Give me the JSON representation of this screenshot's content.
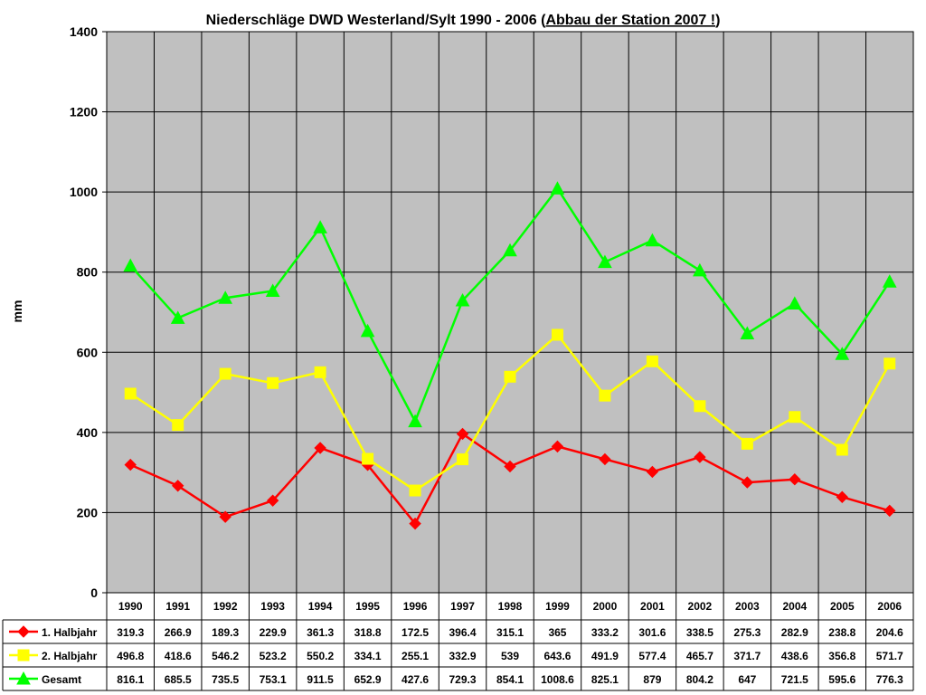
{
  "chart_data": {
    "type": "line",
    "title": "Niederschläge DWD Westerland/Sylt 1990 - 2006 ",
    "title_paren_open": "(",
    "title_underlined": "Abbau der Station 2007 !",
    "title_paren_close": ")",
    "ylabel": "mm",
    "xlabel": "",
    "ylim": [
      0,
      1400
    ],
    "yticks": [
      "0",
      "200",
      "400",
      "600",
      "800",
      "1000",
      "1200",
      "1400"
    ],
    "grid": true,
    "legend": "data-table",
    "plot_background": "#c0c0c0",
    "categories": [
      "1990",
      "1991",
      "1992",
      "1993",
      "1994",
      "1995",
      "1996",
      "1997",
      "1998",
      "1999",
      "2000",
      "2001",
      "2002",
      "2003",
      "2004",
      "2005",
      "2006"
    ],
    "series": [
      {
        "name": "1. Halbjahr",
        "color": "#ff0000",
        "marker": "diamond",
        "values": [
          319.3,
          266.9,
          189.3,
          229.9,
          361.3,
          318.8,
          172.5,
          396.4,
          315.1,
          365,
          333.2,
          301.6,
          338.5,
          275.3,
          282.9,
          238.8,
          204.6
        ],
        "labels": [
          "319.3",
          "266.9",
          "189.3",
          "229.9",
          "361.3",
          "318.8",
          "172.5",
          "396.4",
          "315.1",
          "365",
          "333.2",
          "301.6",
          "338.5",
          "275.3",
          "282.9",
          "238.8",
          "204.6"
        ]
      },
      {
        "name": "2. Halbjahr",
        "color": "#ffff00",
        "marker": "square",
        "values": [
          496.8,
          418.6,
          546.2,
          523.2,
          550.2,
          334.1,
          255.1,
          332.9,
          539,
          643.6,
          491.9,
          577.4,
          465.7,
          371.7,
          438.6,
          356.8,
          571.7
        ],
        "labels": [
          "496.8",
          "418.6",
          "546.2",
          "523.2",
          "550.2",
          "334.1",
          "255.1",
          "332.9",
          "539",
          "643.6",
          "491.9",
          "577.4",
          "465.7",
          "371.7",
          "438.6",
          "356.8",
          "571.7"
        ]
      },
      {
        "name": "Gesamt",
        "color": "#00ff00",
        "marker": "triangle",
        "values": [
          816.1,
          685.5,
          735.5,
          753.1,
          911.5,
          652.9,
          427.6,
          729.3,
          854.1,
          1008.6,
          825.1,
          879,
          804.2,
          647,
          721.5,
          595.6,
          776.3
        ],
        "labels": [
          "816.1",
          "685.5",
          "735.5",
          "753.1",
          "911.5",
          "652.9",
          "427.6",
          "729.3",
          "854.1",
          "1008.6",
          "825.1",
          "879",
          "804.2",
          "647",
          "721.5",
          "595.6",
          "776.3"
        ]
      }
    ]
  }
}
